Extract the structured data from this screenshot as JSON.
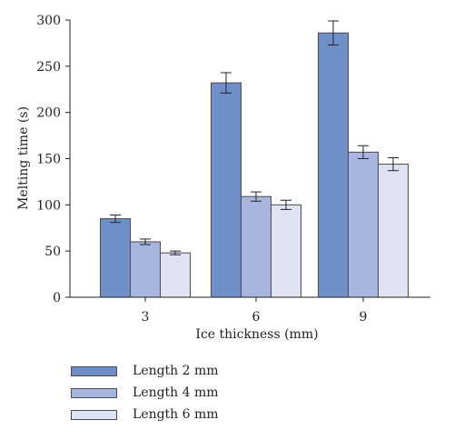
{
  "chart_data": {
    "type": "bar",
    "xlabel": "Ice thickness (mm)",
    "ylabel": "Melting time (s)",
    "ylim": [
      0,
      300
    ],
    "yticks": [
      0,
      50,
      100,
      150,
      200,
      250,
      300
    ],
    "categories": [
      "3",
      "6",
      "9"
    ],
    "legend_position": "bottom-left",
    "series": [
      {
        "name": "Length 2 mm",
        "color": "#6f8fc9",
        "values": [
          85,
          232,
          286
        ],
        "errors": [
          4,
          11,
          13
        ]
      },
      {
        "name": "Length 4 mm",
        "color": "#a7b5e0",
        "values": [
          60,
          109,
          157
        ],
        "errors": [
          3,
          5,
          7
        ]
      },
      {
        "name": "Length 6 mm",
        "color": "#dfe3f4",
        "values": [
          48,
          100,
          144
        ],
        "errors": [
          2,
          5,
          7
        ]
      }
    ]
  }
}
